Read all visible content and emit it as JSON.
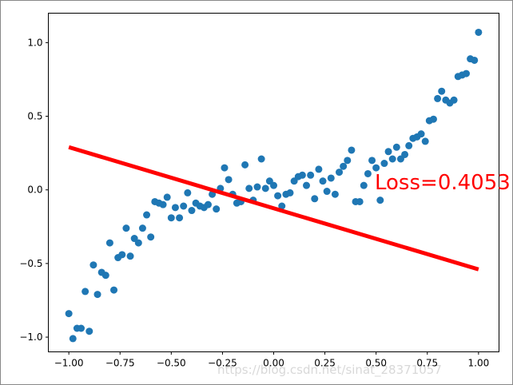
{
  "chart_data": {
    "type": "scatter-line",
    "annotation": "Loss=0.4053",
    "watermark": "https://blog.csdn.net/sinat_28371057",
    "series": [
      {
        "kind": "scatter",
        "color": "#1f77b4",
        "x": [
          -1.0,
          -0.98,
          -0.96,
          -0.94,
          -0.92,
          -0.9,
          -0.88,
          -0.86,
          -0.84,
          -0.82,
          -0.8,
          -0.78,
          -0.76,
          -0.74,
          -0.72,
          -0.7,
          -0.68,
          -0.66,
          -0.64,
          -0.62,
          -0.6,
          -0.58,
          -0.56,
          -0.54,
          -0.52,
          -0.5,
          -0.48,
          -0.46,
          -0.44,
          -0.42,
          -0.4,
          -0.38,
          -0.36,
          -0.34,
          -0.32,
          -0.3,
          -0.28,
          -0.26,
          -0.24,
          -0.22,
          -0.2,
          -0.18,
          -0.16,
          -0.14,
          -0.12,
          -0.1,
          -0.08,
          -0.06,
          -0.04,
          -0.02,
          0.0,
          0.02,
          0.04,
          0.06,
          0.08,
          0.1,
          0.12,
          0.14,
          0.16,
          0.18,
          0.2,
          0.22,
          0.24,
          0.26,
          0.28,
          0.3,
          0.32,
          0.34,
          0.36,
          0.38,
          0.4,
          0.42,
          0.44,
          0.46,
          0.48,
          0.5,
          0.52,
          0.54,
          0.56,
          0.58,
          0.6,
          0.62,
          0.64,
          0.66,
          0.68,
          0.7,
          0.72,
          0.74,
          0.76,
          0.78,
          0.8,
          0.82,
          0.84,
          0.86,
          0.88,
          0.9,
          0.92,
          0.94,
          0.96,
          0.98,
          1.0
        ],
        "values": [
          -0.84,
          -1.01,
          -0.94,
          -0.94,
          -0.69,
          -0.96,
          -0.51,
          -0.71,
          -0.56,
          -0.58,
          -0.36,
          -0.68,
          -0.46,
          -0.44,
          -0.26,
          -0.45,
          -0.33,
          -0.36,
          -0.26,
          -0.17,
          -0.32,
          -0.08,
          -0.09,
          -0.1,
          -0.05,
          -0.19,
          -0.12,
          -0.19,
          -0.11,
          -0.02,
          -0.14,
          -0.09,
          -0.11,
          -0.12,
          -0.1,
          -0.03,
          -0.13,
          0.01,
          0.15,
          0.07,
          -0.03,
          -0.09,
          -0.08,
          0.17,
          0.01,
          -0.07,
          0.02,
          0.21,
          0.01,
          0.06,
          0.03,
          -0.04,
          -0.11,
          -0.03,
          -0.02,
          0.06,
          0.09,
          0.1,
          0.03,
          0.1,
          -0.06,
          0.14,
          0.06,
          -0.01,
          0.08,
          -0.03,
          0.12,
          0.16,
          0.2,
          0.27,
          -0.08,
          -0.08,
          0.03,
          0.11,
          0.2,
          0.15,
          -0.07,
          0.18,
          0.26,
          0.21,
          0.29,
          0.21,
          0.24,
          0.3,
          0.35,
          0.36,
          0.38,
          0.33,
          0.47,
          0.48,
          0.62,
          0.67,
          0.61,
          0.59,
          0.61,
          0.77,
          0.78,
          0.79,
          0.89,
          0.88,
          1.07
        ]
      },
      {
        "kind": "line",
        "color": "#ff0000",
        "x": [
          -1.0,
          1.0
        ],
        "values": [
          0.29,
          -0.54
        ]
      }
    ],
    "xlim": [
      -1.1,
      1.1
    ],
    "ylim": [
      -1.1,
      1.2
    ],
    "xticks": [
      {
        "value": -1.0,
        "label": "−1.00"
      },
      {
        "value": -0.75,
        "label": "−0.75"
      },
      {
        "value": -0.5,
        "label": "−0.50"
      },
      {
        "value": -0.25,
        "label": "−0.25"
      },
      {
        "value": 0,
        "label": "0.00"
      },
      {
        "value": 0.25,
        "label": "0.25"
      },
      {
        "value": 0.5,
        "label": "0.50"
      },
      {
        "value": 0.75,
        "label": "0.75"
      },
      {
        "value": 1.0,
        "label": "1.00"
      }
    ],
    "yticks": [
      {
        "value": -1.0,
        "label": "−1.0"
      },
      {
        "value": -0.5,
        "label": "−0.5"
      },
      {
        "value": 0,
        "label": "0.0"
      },
      {
        "value": 0.5,
        "label": "0.5"
      },
      {
        "value": 1.0,
        "label": "1.0"
      }
    ],
    "grid": false
  }
}
